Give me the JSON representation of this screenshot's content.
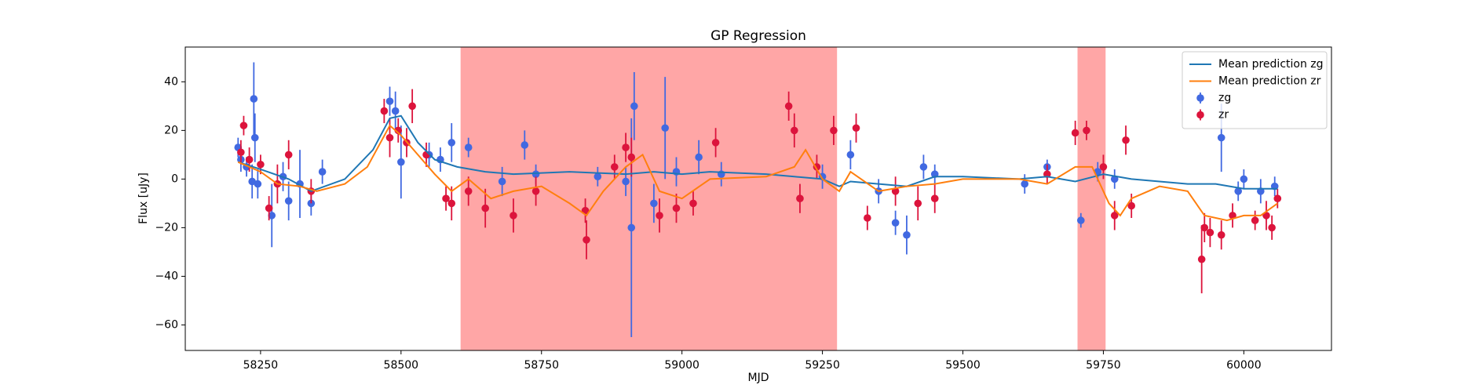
{
  "chart_data": {
    "type": "line",
    "title": "GP Regression",
    "x_label": "MJD",
    "y_label": "Flux [uJy]",
    "xlim": [
      58116,
      60156
    ],
    "ylim": [
      -70.5,
      54.3
    ],
    "xticks": [
      58250,
      58500,
      58750,
      59000,
      59250,
      59500,
      59750,
      60000
    ],
    "yticks": [
      {
        "value": -60,
        "label": "−60"
      },
      {
        "value": -40,
        "label": "−40"
      },
      {
        "value": -20,
        "label": "−20"
      },
      0,
      20,
      40
    ],
    "legend": "upper right",
    "spans": {
      "color": "#ff0000",
      "alpha": 0.35,
      "ranges": [
        [
          58606,
          59276
        ],
        [
          59704,
          59754
        ]
      ]
    },
    "series": [
      {
        "name": "Mean prediction zg",
        "style": "line",
        "color": "#1f77b4",
        "x": [
          58210,
          58250,
          58300,
          58340,
          58400,
          58450,
          58480,
          58500,
          58530,
          58560,
          58600,
          58650,
          58700,
          58800,
          58900,
          58950,
          59000,
          59050,
          59150,
          59200,
          59250,
          59280,
          59300,
          59350,
          59400,
          59450,
          59500,
          59600,
          59650,
          59700,
          59750,
          59800,
          59900,
          59950,
          60000,
          60060
        ],
        "values": [
          7,
          4,
          0,
          -5,
          0,
          12,
          25,
          26,
          15,
          8,
          5,
          3,
          2,
          3,
          2,
          3,
          2,
          3,
          2,
          1,
          0,
          -3,
          -1,
          -2,
          -3,
          1,
          1,
          0,
          1,
          -1,
          2,
          0,
          -2,
          -2,
          -4,
          -4
        ]
      },
      {
        "name": "Mean prediction zr",
        "style": "line",
        "color": "#ff7f0e",
        "x": [
          58210,
          58250,
          58280,
          58320,
          58350,
          58400,
          58440,
          58480,
          58500,
          58530,
          58560,
          58590,
          58620,
          58660,
          58700,
          58750,
          58800,
          58830,
          58860,
          58900,
          58930,
          58960,
          59000,
          59050,
          59150,
          59200,
          59220,
          59250,
          59280,
          59300,
          59350,
          59400,
          59450,
          59500,
          59600,
          59650,
          59700,
          59730,
          59760,
          59780,
          59800,
          59850,
          59900,
          59930,
          59970,
          60000,
          60030,
          60060
        ],
        "values": [
          7,
          3,
          -2,
          -3,
          -5,
          -2,
          5,
          22,
          18,
          10,
          2,
          -5,
          0,
          -8,
          -5,
          -3,
          -10,
          -15,
          -5,
          5,
          10,
          -5,
          -8,
          0,
          1,
          5,
          12,
          0,
          -5,
          3,
          -5,
          -3,
          -2,
          0,
          0,
          -2,
          5,
          5,
          -10,
          -15,
          -8,
          -3,
          -5,
          -15,
          -17,
          -15,
          -15,
          -10
        ]
      },
      {
        "name": "zg",
        "style": "errorbar",
        "color": "#4169e1",
        "x": [
          58210,
          58215,
          58225,
          58235,
          58238,
          58240,
          58245,
          58270,
          58290,
          58300,
          58320,
          58340,
          58360,
          58480,
          58490,
          58500,
          58550,
          58570,
          58590,
          58620,
          58680,
          58720,
          58740,
          58850,
          58900,
          58910,
          58915,
          58950,
          58970,
          58990,
          59030,
          59070,
          59250,
          59300,
          59350,
          59380,
          59400,
          59430,
          59450,
          59610,
          59650,
          59710,
          59740,
          59770,
          59960,
          59990,
          60000,
          60030,
          60055
        ],
        "values": [
          13,
          8,
          5,
          -1,
          33,
          17,
          -2,
          -15,
          1,
          -9,
          -2,
          -10,
          3,
          32,
          28,
          7,
          10,
          8,
          15,
          13,
          -1,
          14,
          2,
          1,
          -1,
          -20,
          30,
          -10,
          21,
          3,
          9,
          2,
          1,
          10,
          -5,
          -18,
          -23,
          5,
          2,
          -2,
          5,
          -17,
          3,
          0,
          17,
          -5,
          0,
          -5,
          -3
        ],
        "errors": [
          4,
          5,
          4,
          7,
          15,
          10,
          6,
          13,
          6,
          8,
          14,
          5,
          5,
          6,
          8,
          15,
          5,
          5,
          8,
          4,
          6,
          6,
          4,
          4,
          6,
          45,
          14,
          8,
          21,
          6,
          7,
          5,
          5,
          6,
          5,
          5,
          8,
          5,
          4,
          4,
          3,
          3,
          4,
          4,
          14,
          4,
          4,
          5,
          4
        ]
      },
      {
        "name": "zr",
        "style": "errorbar",
        "color": "#dc143c",
        "x": [
          58215,
          58220,
          58230,
          58250,
          58265,
          58280,
          58300,
          58340,
          58470,
          58480,
          58495,
          58510,
          58520,
          58545,
          58580,
          58590,
          58620,
          58650,
          58700,
          58740,
          58830,
          58828,
          58880,
          58900,
          58910,
          58960,
          58990,
          59020,
          59060,
          59190,
          59200,
          59210,
          59240,
          59270,
          59310,
          59330,
          59380,
          59420,
          59450,
          59650,
          59700,
          59720,
          59750,
          59770,
          59790,
          59800,
          59925,
          59930,
          59940,
          59960,
          59980,
          60020,
          60040,
          60050,
          60060
        ],
        "values": [
          11,
          22,
          8,
          6,
          -12,
          -2,
          10,
          -5,
          28,
          17,
          20,
          15,
          30,
          10,
          -8,
          -10,
          -5,
          -12,
          -15,
          -5,
          -25,
          -13,
          5,
          13,
          9,
          -15,
          -12,
          -10,
          15,
          30,
          20,
          -8,
          5,
          20,
          21,
          -16,
          -5,
          -10,
          -8,
          2,
          19,
          20,
          5,
          -15,
          16,
          -11,
          -33,
          -20,
          -22,
          -23,
          -15,
          -17,
          -15,
          -20,
          -8
        ],
        "errors": [
          5,
          4,
          5,
          4,
          5,
          8,
          6,
          5,
          5,
          8,
          5,
          6,
          7,
          5,
          5,
          7,
          6,
          8,
          7,
          6,
          8,
          5,
          5,
          6,
          8,
          7,
          6,
          5,
          6,
          6,
          7,
          6,
          5,
          6,
          6,
          5,
          6,
          7,
          6,
          4,
          5,
          4,
          5,
          6,
          6,
          5,
          14,
          6,
          6,
          6,
          5,
          4,
          6,
          5,
          4
        ]
      }
    ]
  }
}
